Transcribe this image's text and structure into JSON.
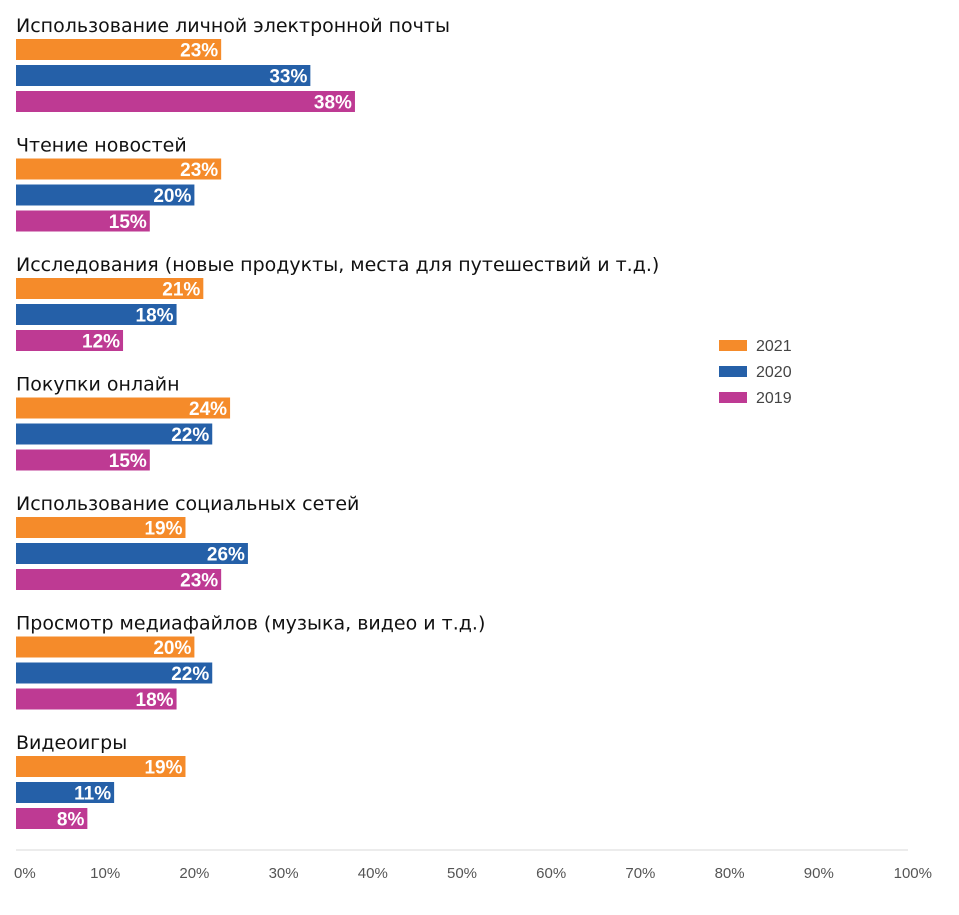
{
  "chart_data": {
    "type": "bar",
    "orientation": "horizontal",
    "categories": [
      "Использование личной электронной почты",
      "Чтение новостей",
      "Исследования (новые продукты, места для путешествий и т.д.)",
      "Покупки онлайн",
      "Использование социальных сетей",
      "Просмотр медиафайлов (музыка, видео и т.д.)",
      "Видеоигры"
    ],
    "series": [
      {
        "name": "2021",
        "color": "#F58B2A",
        "values": [
          23,
          23,
          21,
          24,
          19,
          20,
          19
        ]
      },
      {
        "name": "2020",
        "color": "#2560A8",
        "values": [
          33,
          20,
          18,
          22,
          26,
          22,
          11
        ]
      },
      {
        "name": "2019",
        "color": "#BE3A93",
        "values": [
          38,
          15,
          12,
          15,
          23,
          18,
          8
        ]
      }
    ],
    "value_labels": [
      [
        "23%",
        "23%",
        "21%",
        "24%",
        "19%",
        "20%",
        "19%"
      ],
      [
        "33%",
        "20%",
        "18%",
        "22%",
        "26%",
        "22%",
        "11%"
      ],
      [
        "38%",
        "15%",
        "12%",
        "15%",
        "23%",
        "18%",
        "8%"
      ]
    ],
    "xlim": [
      0,
      100
    ],
    "xticks": [
      "0%",
      "10%",
      "20%",
      "30%",
      "40%",
      "50%",
      "60%",
      "70%",
      "80%",
      "90%",
      "100%"
    ],
    "title": "",
    "xlabel": "",
    "ylabel": "",
    "grid": false,
    "legend": {
      "placement": "right",
      "order": [
        "2021",
        "2020",
        "2019"
      ]
    }
  }
}
